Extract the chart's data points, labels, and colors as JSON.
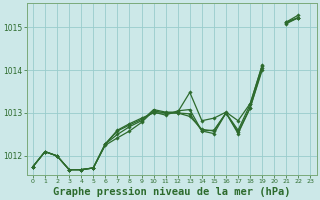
{
  "background_color": "#cce8e8",
  "grid_color": "#99cccc",
  "line_color": "#2d6b2d",
  "marker_color": "#2d6b2d",
  "title": "Graphe pression niveau de la mer (hPa)",
  "title_fontsize": 7.5,
  "label_color": "#2d6b2d",
  "ylim": [
    1011.55,
    1015.55
  ],
  "xlim": [
    -0.5,
    23.5
  ],
  "yticks": [
    1012,
    1013,
    1014,
    1015
  ],
  "xticks": [
    0,
    1,
    2,
    3,
    4,
    5,
    6,
    7,
    8,
    9,
    10,
    11,
    12,
    13,
    14,
    15,
    16,
    17,
    18,
    19,
    20,
    21,
    22,
    23
  ],
  "series": [
    {
      "x": [
        0,
        1,
        2,
        3,
        4,
        5,
        6,
        7,
        8,
        9,
        10,
        11,
        12,
        13,
        14,
        15,
        16,
        17,
        18,
        19,
        20,
        21,
        22,
        23
      ],
      "y": [
        1011.75,
        1012.1,
        1012.0,
        1011.68,
        1011.68,
        1011.72,
        1012.28,
        1012.5,
        1012.68,
        1012.82,
        1013.08,
        1013.02,
        1013.02,
        1013.48,
        1012.82,
        1012.88,
        1013.02,
        1012.82,
        1013.22,
        1014.1,
        null,
        1015.08,
        1015.22,
        null
      ],
      "smooth": true
    },
    {
      "x": [
        0,
        1,
        2,
        3,
        4,
        5,
        6,
        7,
        8,
        9,
        10,
        11,
        12,
        13,
        14,
        15,
        16,
        17,
        18,
        19,
        20,
        21,
        22,
        23
      ],
      "y": [
        1011.75,
        1012.1,
        1012.0,
        1011.68,
        1011.68,
        1011.72,
        1012.28,
        1012.58,
        1012.72,
        1012.85,
        1013.02,
        1012.95,
        1013.05,
        1013.08,
        1012.58,
        1012.52,
        1013.0,
        1012.52,
        1013.12,
        1014.05,
        null,
        1015.12,
        1015.22,
        null
      ],
      "smooth": false
    },
    {
      "x": [
        0,
        1,
        2,
        3,
        4,
        5,
        6,
        7,
        8,
        9,
        10,
        11,
        12,
        13,
        14,
        15,
        16,
        17,
        18,
        19,
        20,
        21,
        22,
        23
      ],
      "y": [
        1011.75,
        1012.1,
        1012.0,
        1011.68,
        1011.68,
        1011.72,
        1012.25,
        1012.42,
        1012.58,
        1012.78,
        1013.05,
        1013.0,
        1013.0,
        1012.92,
        1012.62,
        1012.58,
        1013.0,
        1012.55,
        1013.12,
        1014.0,
        null,
        1015.1,
        1015.22,
        null
      ],
      "smooth": false
    },
    {
      "x": [
        0,
        1,
        2,
        3,
        4,
        5,
        6,
        7,
        8,
        9,
        10,
        11,
        12,
        13,
        14,
        15,
        16,
        17,
        18,
        19,
        20,
        21,
        22,
        23
      ],
      "y": [
        1011.75,
        1012.1,
        1012.0,
        1011.68,
        1011.68,
        1011.72,
        1012.28,
        1012.6,
        1012.75,
        1012.88,
        1013.0,
        1013.0,
        1013.0,
        1012.98,
        1012.58,
        1012.6,
        1013.0,
        1012.6,
        1013.2,
        1014.12,
        null,
        1015.12,
        1015.28,
        null
      ],
      "smooth": false
    }
  ],
  "spine_color": "#7aaa7a"
}
